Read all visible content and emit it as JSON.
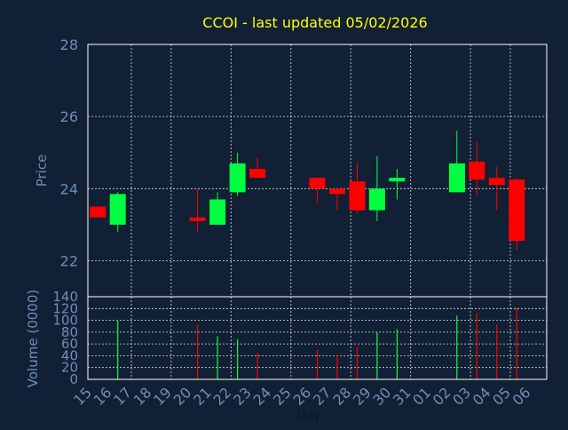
{
  "chart_data": [
    {
      "type": "candlestick",
      "title": "CCOI - last updated 05/02/2026",
      "ylabel": "Price",
      "ylim": [
        21,
        28
      ],
      "yticks": [
        22,
        24,
        26,
        28
      ],
      "grid": true,
      "colors": {
        "up": "#00ff40",
        "down": "#ff0000",
        "background": "#112034",
        "text": "#6f8db7",
        "title": "#ffff00"
      },
      "series": [
        {
          "x": "15",
          "open": 23.5,
          "close": 23.2,
          "high": 23.5,
          "low": 23.2
        },
        {
          "x": "16",
          "open": 23.0,
          "close": 23.85,
          "high": 23.9,
          "low": 22.8
        },
        {
          "x": "20",
          "open": 23.2,
          "close": 23.1,
          "high": 24.0,
          "low": 22.8
        },
        {
          "x": "21",
          "open": 23.0,
          "close": 23.7,
          "high": 23.9,
          "low": 23.0
        },
        {
          "x": "22",
          "open": 23.9,
          "close": 24.7,
          "high": 25.0,
          "low": 23.8
        },
        {
          "x": "23",
          "open": 24.55,
          "close": 24.3,
          "high": 24.85,
          "low": 24.3
        },
        {
          "x": "26",
          "open": 24.3,
          "close": 24.0,
          "high": 24.3,
          "low": 23.6
        },
        {
          "x": "27",
          "open": 24.0,
          "close": 23.85,
          "high": 24.0,
          "low": 23.4
        },
        {
          "x": "28",
          "open": 24.2,
          "close": 23.4,
          "high": 24.7,
          "low": 23.3
        },
        {
          "x": "29",
          "open": 23.4,
          "close": 24.0,
          "high": 24.9,
          "low": 23.1
        },
        {
          "x": "30",
          "open": 24.2,
          "close": 24.3,
          "high": 24.55,
          "low": 23.7
        },
        {
          "x": "02",
          "open": 23.9,
          "close": 24.7,
          "high": 25.6,
          "low": 23.9
        },
        {
          "x": "03",
          "open": 24.75,
          "close": 24.25,
          "high": 25.3,
          "low": 23.8
        },
        {
          "x": "04",
          "open": 24.3,
          "close": 24.1,
          "high": 24.6,
          "low": 23.4
        },
        {
          "x": "05",
          "open": 24.25,
          "close": 22.55,
          "high": 24.3,
          "low": 22.3
        }
      ]
    },
    {
      "type": "bar",
      "ylabel": "Volume (0000)",
      "xlabel": "Day",
      "ylim": [
        0,
        140
      ],
      "yticks": [
        0,
        20,
        40,
        60,
        80,
        100,
        120,
        140
      ],
      "categories": [
        "15",
        "16",
        "17",
        "18",
        "19",
        "20",
        "21",
        "22",
        "23",
        "24",
        "25",
        "26",
        "27",
        "28",
        "29",
        "30",
        "31",
        "01",
        "02",
        "03",
        "04",
        "05",
        "06"
      ],
      "values": [
        {
          "x": "16",
          "value": 100,
          "direction": "up"
        },
        {
          "x": "20",
          "value": 93,
          "direction": "down"
        },
        {
          "x": "21",
          "value": 73,
          "direction": "up"
        },
        {
          "x": "22",
          "value": 68,
          "direction": "up"
        },
        {
          "x": "23",
          "value": 45,
          "direction": "down"
        },
        {
          "x": "26",
          "value": 50,
          "direction": "down"
        },
        {
          "x": "27",
          "value": 42,
          "direction": "down"
        },
        {
          "x": "28",
          "value": 55,
          "direction": "down"
        },
        {
          "x": "29",
          "value": 80,
          "direction": "up"
        },
        {
          "x": "30",
          "value": 85,
          "direction": "up"
        },
        {
          "x": "02",
          "value": 108,
          "direction": "up"
        },
        {
          "x": "03",
          "value": 112,
          "direction": "down"
        },
        {
          "x": "04",
          "value": 93,
          "direction": "down"
        },
        {
          "x": "05",
          "value": 122,
          "direction": "down"
        }
      ],
      "grid": true
    }
  ]
}
